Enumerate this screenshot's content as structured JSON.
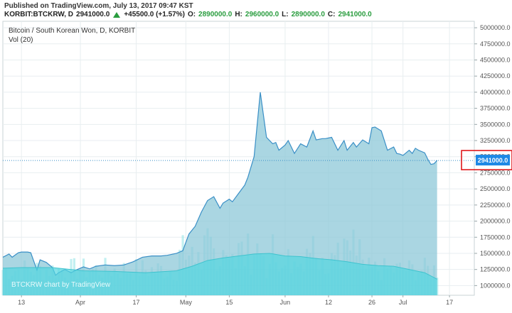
{
  "header": {
    "published": "Published on TradingView.com, July 13, 2017 09:47 KST",
    "symbol": "KORBIT:BTCKRW, D",
    "close_value": "2941000.0",
    "change": "+45500.0 (+1.57%)",
    "open_label": "O:",
    "open_value": "2890000.0",
    "high_label": "H:",
    "high_value": "2960000.0",
    "low_label": "L:",
    "low_value": "2890000.0",
    "close_label": "C:",
    "close_value2": "2941000.0"
  },
  "colors": {
    "price_fill": "#8ec8d8",
    "price_line": "#3a8fc6",
    "volume_bars": "#8fe3e6",
    "volume_ma": "#52d6df",
    "current_price_box": "#1e88e5",
    "highlight": "#e0181b",
    "grid": "#e8eef0",
    "dotted_line": "#3a8fc6"
  },
  "chart_data": {
    "type": "area",
    "title": "Bitcoin / South Korean Won, D, KORBIT",
    "indicator": "Vol (20)",
    "watermark": "BTCKRW chart by TradingView",
    "current_price_label": "2941000.0",
    "ylim": [
      850000,
      5100000
    ],
    "y_ticks": [
      "5000000.0",
      "4750000.0",
      "4500000.0",
      "4250000.0",
      "4000000.0",
      "3750000.0",
      "3500000.0",
      "3250000.0",
      "3000000.0",
      "2750000.0",
      "2500000.0",
      "2250000.0",
      "2000000.0",
      "1750000.0",
      "1500000.0",
      "1250000.0",
      "1000000.0"
    ],
    "y_tick_values": [
      5000000,
      4750000,
      4500000,
      4250000,
      4000000,
      3750000,
      3500000,
      3250000,
      3000000,
      2750000,
      2500000,
      2250000,
      2000000,
      1750000,
      1500000,
      1250000,
      1000000
    ],
    "x_ticks": [
      "13",
      "Apr",
      "17",
      "May",
      "15",
      "Jun",
      "12",
      "26",
      "Jul",
      "17"
    ],
    "x_tick_days": [
      0,
      19,
      37,
      53,
      67,
      85,
      99,
      113,
      123,
      138
    ],
    "x_range": [
      -6,
      146
    ],
    "start_date": "2017-03-13",
    "series": [
      {
        "name": "Price",
        "days": [
          -6,
          -4,
          -3,
          -1,
          0,
          2,
          3,
          5,
          6,
          8,
          10,
          11,
          12,
          14,
          16,
          18,
          20,
          22,
          24,
          27,
          30,
          33,
          36,
          39,
          42,
          45,
          47,
          50,
          52,
          54,
          56,
          58,
          60,
          62,
          64,
          65,
          67,
          68,
          70,
          72,
          73,
          75,
          77,
          79,
          81,
          82,
          83,
          85,
          86,
          88,
          90,
          92,
          94,
          95,
          97,
          98,
          100,
          102,
          104,
          105,
          107,
          108,
          110,
          112,
          113,
          114,
          116,
          118,
          120,
          121,
          122,
          123,
          125,
          126,
          127,
          128,
          130,
          131,
          132,
          133,
          134
        ],
        "values": [
          1440000,
          1490000,
          1440000,
          1510000,
          1520000,
          1520000,
          1510000,
          1240000,
          1400000,
          1360000,
          1280000,
          1160000,
          1200000,
          1250000,
          1200000,
          1250000,
          1290000,
          1260000,
          1300000,
          1320000,
          1310000,
          1320000,
          1370000,
          1440000,
          1460000,
          1460000,
          1470000,
          1500000,
          1540000,
          1800000,
          1920000,
          2140000,
          2320000,
          2380000,
          2200000,
          2280000,
          2340000,
          2300000,
          2430000,
          2560000,
          2680000,
          3000000,
          4000000,
          3300000,
          3200000,
          3220000,
          3100000,
          3180000,
          3250000,
          3050000,
          3200000,
          3150000,
          3400000,
          3260000,
          3280000,
          3280000,
          3300000,
          3100000,
          3250000,
          3100000,
          3220000,
          3150000,
          3260000,
          3200000,
          3450000,
          3460000,
          3400000,
          3100000,
          3150000,
          3050000,
          3040000,
          3020000,
          3100000,
          3050000,
          3130000,
          3100000,
          3060000,
          2960000,
          2880000,
          2890000,
          2941000
        ]
      },
      {
        "name": "Vol",
        "ma_days": [
          -6,
          0,
          10,
          20,
          30,
          40,
          50,
          55,
          60,
          65,
          70,
          75,
          80,
          85,
          90,
          95,
          100,
          105,
          110,
          115,
          120,
          125,
          130,
          134
        ],
        "ma_values": [
          1270000,
          1280000,
          1280000,
          1230000,
          1220000,
          1200000,
          1230000,
          1300000,
          1390000,
          1430000,
          1460000,
          1490000,
          1500000,
          1460000,
          1450000,
          1420000,
          1400000,
          1370000,
          1330000,
          1310000,
          1300000,
          1250000,
          1200000,
          1100000
        ]
      }
    ]
  }
}
